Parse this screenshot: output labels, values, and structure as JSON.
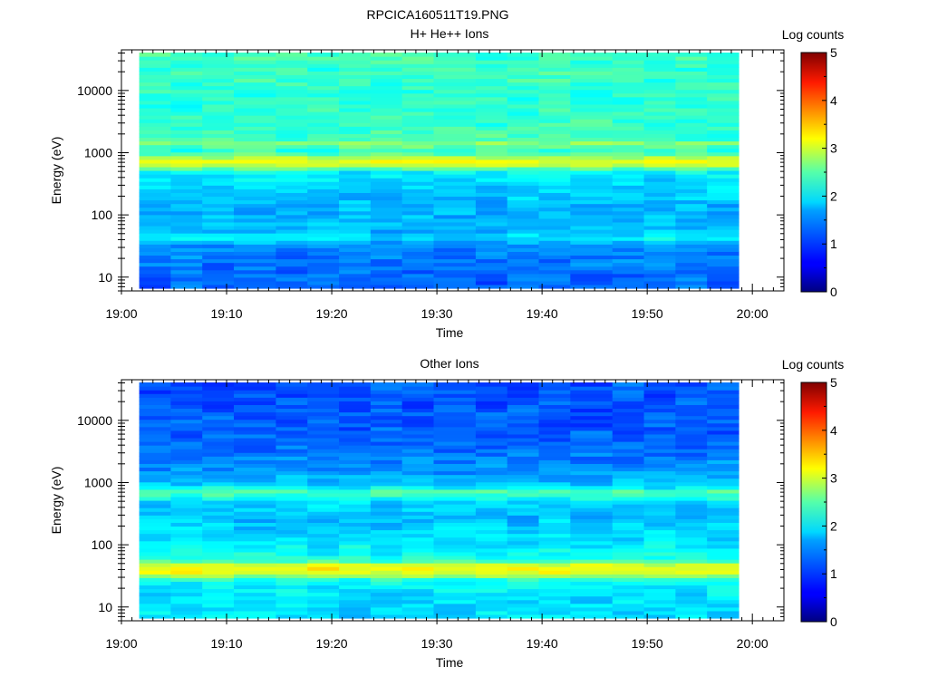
{
  "figure": {
    "title": "RPCICA160511T19.PNG"
  },
  "chart_data": [
    {
      "type": "heatmap",
      "title": "H+ He++ Ions",
      "xlabel": "Time",
      "ylabel": "Energy (eV)",
      "x_ticks": [
        "19:00",
        "19:10",
        "19:20",
        "19:30",
        "19:40",
        "19:50",
        "20:00"
      ],
      "xlim": [
        "19:00",
        "20:03"
      ],
      "data_end": "19:58",
      "y_scale": "log",
      "y_ticks": [
        10,
        100,
        1000,
        10000
      ],
      "ylim": [
        6,
        45000
      ],
      "colorbar": {
        "label": "Log counts",
        "ticks": [
          0,
          1,
          2,
          3,
          4,
          5
        ],
        "range": [
          0,
          5
        ]
      },
      "columns_start": [
        "19:01",
        "19:04",
        "19:07",
        "19:10",
        "19:14",
        "19:17",
        "19:20",
        "19:23",
        "19:26",
        "19:29",
        "19:33",
        "19:36",
        "19:39",
        "19:42",
        "19:46",
        "19:49",
        "19:52",
        "19:55"
      ],
      "energy_profile": [
        {
          "e": 6,
          "v": 1.1
        },
        {
          "e": 10,
          "v": 1.15
        },
        {
          "e": 20,
          "v": 1.25
        },
        {
          "e": 30,
          "v": 1.3
        },
        {
          "e": 38,
          "v": 1.7
        },
        {
          "e": 42,
          "v": 1.9
        },
        {
          "e": 48,
          "v": 1.55
        },
        {
          "e": 70,
          "v": 1.5
        },
        {
          "e": 150,
          "v": 1.55
        },
        {
          "e": 300,
          "v": 1.65
        },
        {
          "e": 500,
          "v": 1.85
        },
        {
          "e": 600,
          "v": 2.6
        },
        {
          "e": 700,
          "v": 3.15
        },
        {
          "e": 850,
          "v": 2.7
        },
        {
          "e": 1000,
          "v": 2.2
        },
        {
          "e": 1200,
          "v": 2.05
        },
        {
          "e": 1400,
          "v": 2.6
        },
        {
          "e": 1700,
          "v": 2.2
        },
        {
          "e": 3000,
          "v": 2.1
        },
        {
          "e": 10000,
          "v": 2.1
        },
        {
          "e": 20000,
          "v": 2.15
        },
        {
          "e": 45000,
          "v": 2.2
        }
      ]
    },
    {
      "type": "heatmap",
      "title": "Other Ions",
      "xlabel": "Time",
      "ylabel": "Energy (eV)",
      "x_ticks": [
        "19:00",
        "19:10",
        "19:20",
        "19:30",
        "19:40",
        "19:50",
        "20:00"
      ],
      "xlim": [
        "19:00",
        "20:03"
      ],
      "data_end": "19:58",
      "y_scale": "log",
      "y_ticks": [
        10,
        100,
        1000,
        10000
      ],
      "ylim": [
        6,
        45000
      ],
      "colorbar": {
        "label": "Log counts",
        "ticks": [
          0,
          1,
          2,
          3,
          4,
          5
        ],
        "range": [
          0,
          5
        ]
      },
      "columns_start": [
        "19:01",
        "19:04",
        "19:07",
        "19:10",
        "19:14",
        "19:17",
        "19:20",
        "19:23",
        "19:26",
        "19:29",
        "19:33",
        "19:36",
        "19:39",
        "19:42",
        "19:46",
        "19:49",
        "19:52",
        "19:55"
      ],
      "energy_profile": [
        {
          "e": 6,
          "v": 1.7
        },
        {
          "e": 15,
          "v": 1.75
        },
        {
          "e": 25,
          "v": 1.9
        },
        {
          "e": 32,
          "v": 2.9
        },
        {
          "e": 38,
          "v": 3.15
        },
        {
          "e": 45,
          "v": 2.9
        },
        {
          "e": 55,
          "v": 2.0
        },
        {
          "e": 100,
          "v": 1.8
        },
        {
          "e": 300,
          "v": 1.55
        },
        {
          "e": 500,
          "v": 1.7
        },
        {
          "e": 650,
          "v": 2.15
        },
        {
          "e": 750,
          "v": 2.25
        },
        {
          "e": 900,
          "v": 1.65
        },
        {
          "e": 1500,
          "v": 1.4
        },
        {
          "e": 3000,
          "v": 1.2
        },
        {
          "e": 10000,
          "v": 1.05
        },
        {
          "e": 45000,
          "v": 1.05
        }
      ]
    }
  ]
}
